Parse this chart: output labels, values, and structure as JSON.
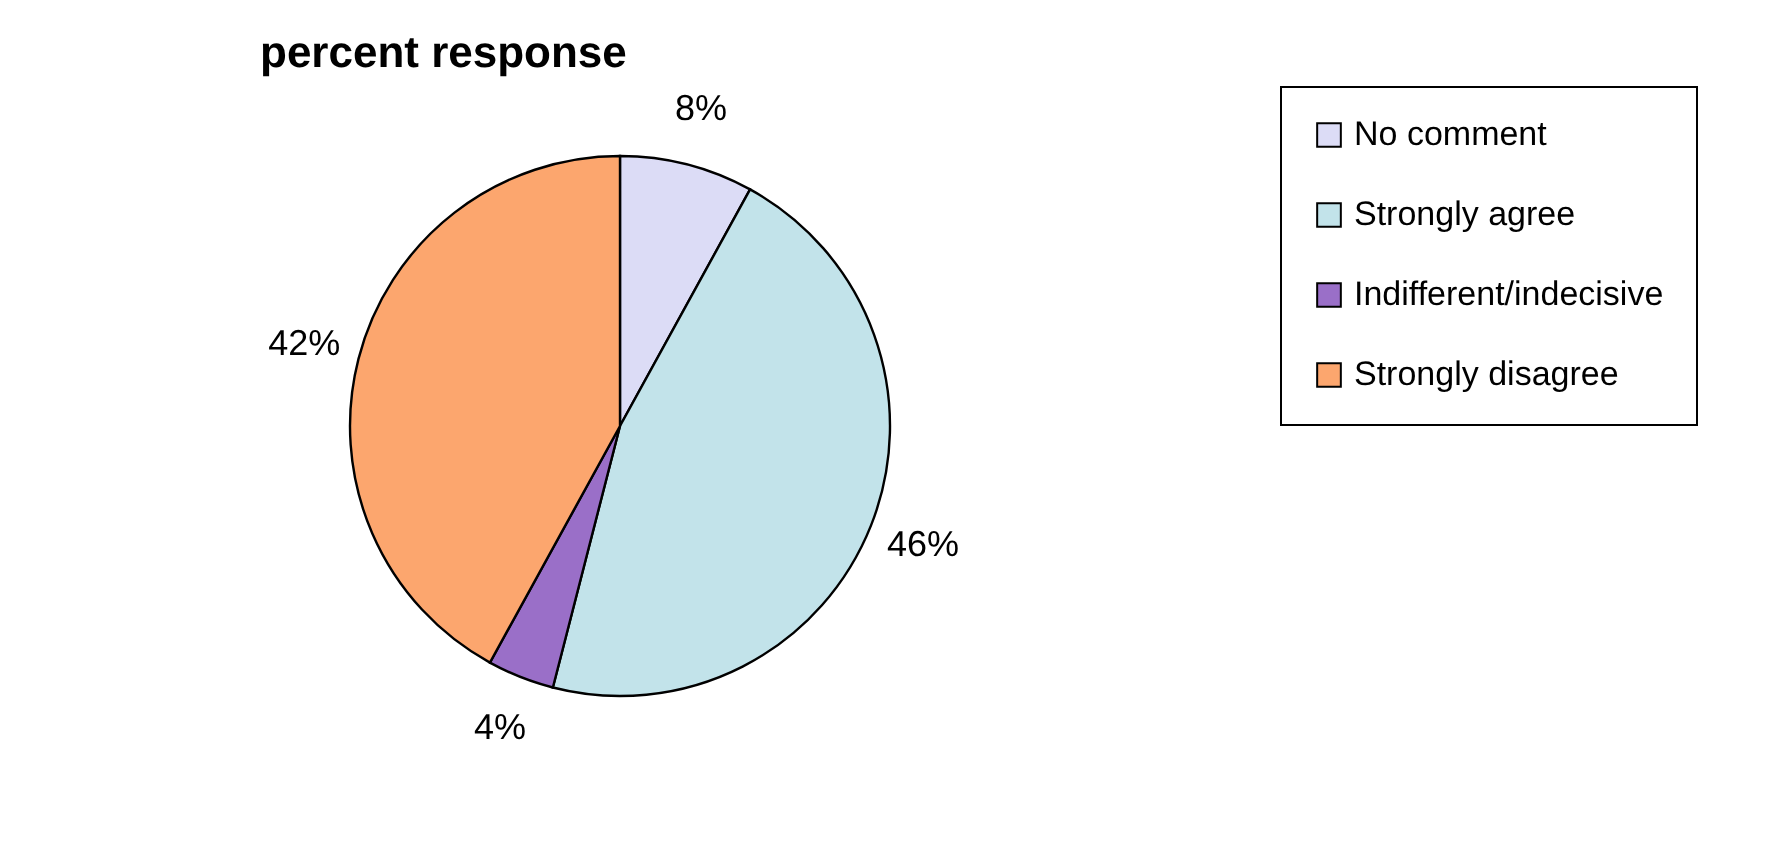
{
  "chart_data": {
    "type": "pie",
    "title": "percent response",
    "categories": [
      "No comment",
      "Strongly agree",
      "Indifferent/indecisive",
      "Strongly disagree"
    ],
    "values": [
      8,
      46,
      4,
      42
    ],
    "colors": [
      "#dcdcf6",
      "#c2e3ea",
      "#9a6fc8",
      "#fca66e"
    ],
    "value_labels": [
      "8%",
      "46%",
      "4%",
      "42%"
    ],
    "legend": "right"
  }
}
